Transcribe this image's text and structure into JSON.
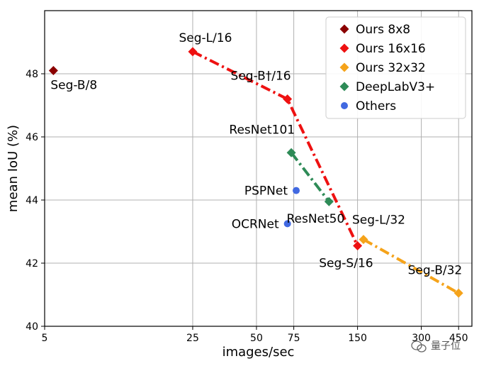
{
  "chart_data": {
    "type": "scatter",
    "xlabel": "images/sec",
    "ylabel": "mean IoU (%)",
    "x_scale": "log",
    "xlim": [
      5,
      520
    ],
    "ylim": [
      40,
      50
    ],
    "x_ticks": [
      5,
      25,
      50,
      75,
      150,
      300,
      450
    ],
    "y_ticks": [
      40,
      42,
      44,
      46,
      48
    ],
    "grid": true,
    "legend_position": "top-right",
    "legend": [
      {
        "label": "Ours 8x8",
        "color": "#8b0000",
        "marker": "diamond"
      },
      {
        "label": "Ours 16x16",
        "color": "#ee1111",
        "marker": "diamond"
      },
      {
        "label": "Ours 32x32",
        "color": "#f5a31a",
        "marker": "diamond"
      },
      {
        "label": "DeepLabV3+",
        "color": "#2e8b57",
        "marker": "diamond"
      },
      {
        "label": "Others",
        "color": "#4169e1",
        "marker": "circle"
      }
    ],
    "series": [
      {
        "name": "Ours 8x8",
        "color": "#8b0000",
        "marker": "diamond",
        "line": false,
        "points": [
          {
            "x": 5.5,
            "y": 48.1,
            "label": "Seg-B/8",
            "anchor": "below-right"
          }
        ]
      },
      {
        "name": "Ours 16x16",
        "color": "#ee1111",
        "marker": "diamond",
        "line": true,
        "points": [
          {
            "x": 25,
            "y": 48.7,
            "label": "Seg-L/16",
            "anchor": "above"
          },
          {
            "x": 70,
            "y": 47.2,
            "label": "Seg-B†/16",
            "anchor": "above-left"
          },
          {
            "x": 150,
            "y": 42.55,
            "label": "Seg-S/16",
            "anchor": "below-left"
          }
        ]
      },
      {
        "name": "Ours 32x32",
        "color": "#f5a31a",
        "marker": "diamond",
        "line": true,
        "points": [
          {
            "x": 160,
            "y": 42.75,
            "label": "Seg-L/32",
            "anchor": "above-right"
          },
          {
            "x": 450,
            "y": 41.05,
            "label": "Seg-B/32",
            "anchor": "above-left"
          }
        ]
      },
      {
        "name": "DeepLabV3+",
        "color": "#2e8b57",
        "marker": "diamond",
        "line": true,
        "points": [
          {
            "x": 73,
            "y": 45.5,
            "label": "ResNet101",
            "anchor": "above-left"
          },
          {
            "x": 110,
            "y": 43.95,
            "label": "ResNet50",
            "anchor": "below-left"
          }
        ]
      },
      {
        "name": "Others",
        "color": "#4169e1",
        "marker": "circle",
        "line": false,
        "points": [
          {
            "x": 77,
            "y": 44.3,
            "label": "PSPNet",
            "anchor": "left"
          },
          {
            "x": 70,
            "y": 43.25,
            "label": "OCRNet",
            "anchor": "left"
          }
        ]
      }
    ]
  },
  "watermark": {
    "text": "量子位",
    "icon": "wechat-icon"
  }
}
